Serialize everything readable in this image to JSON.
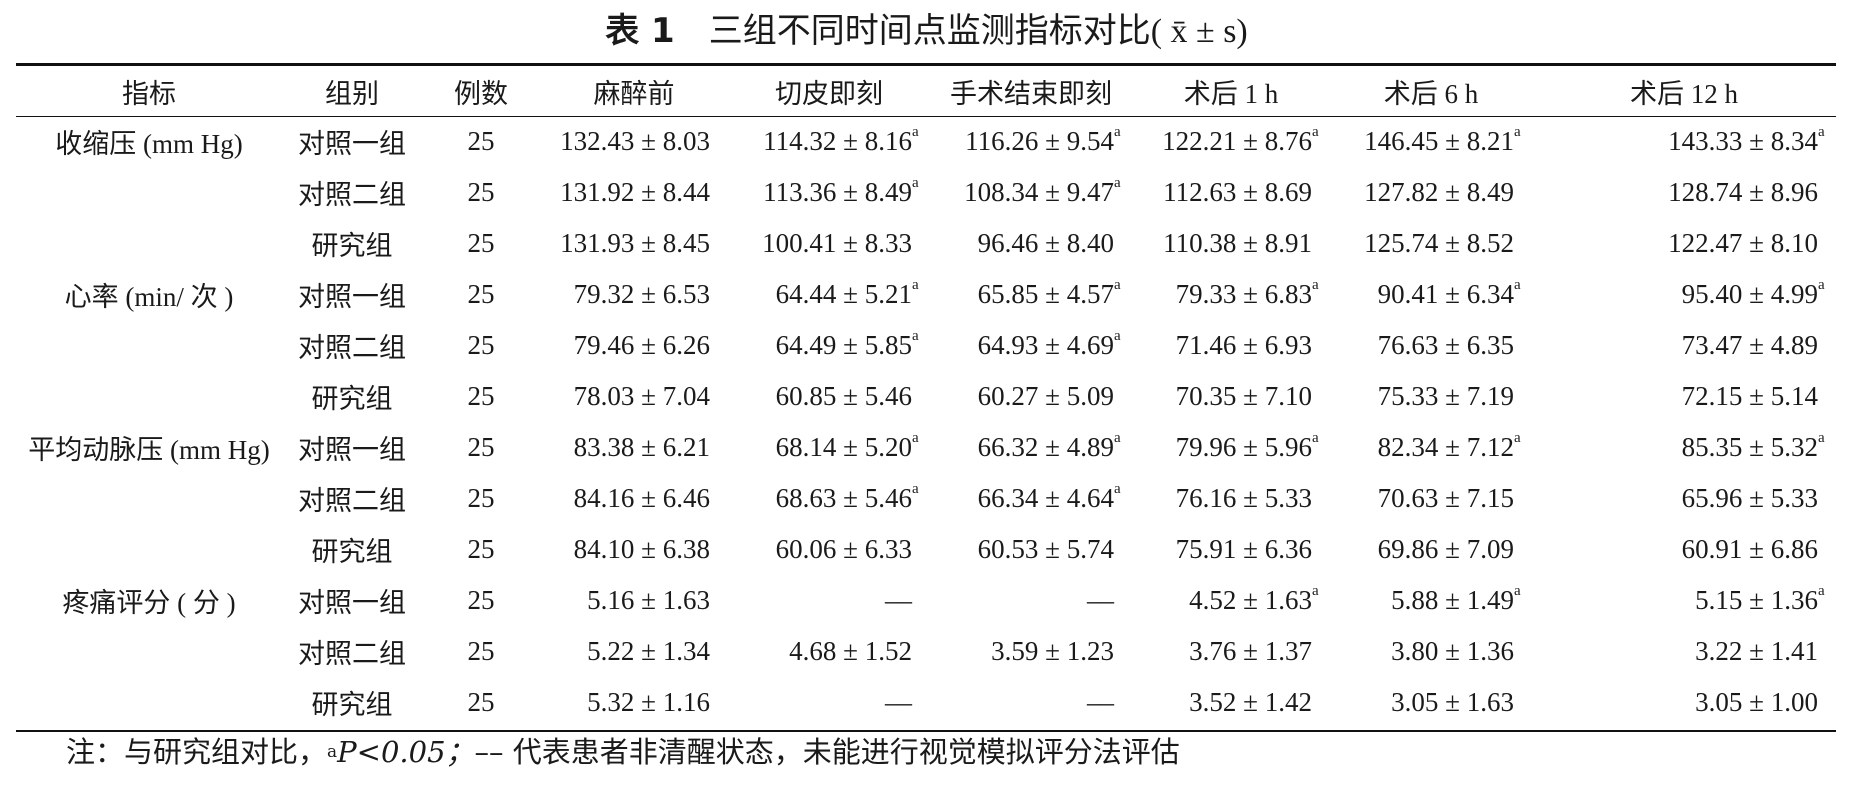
{
  "caption": {
    "label": "表 1",
    "title": "三组不同时间点监测指标对比",
    "stat": "( x̄ ± s)"
  },
  "table": {
    "headers": [
      "指标",
      "组别",
      "例数",
      "麻醉前",
      "切皮即刻",
      "手术结束即刻",
      "术后 1 h",
      "术后 6 h",
      "术后 12 h"
    ],
    "rows": [
      {
        "indicator": "收缩压 (mm Hg)",
        "group": "对照一组",
        "n": "25",
        "values": [
          "132.43 ± 8.03",
          "114.32 ± 8.16",
          "116.26 ± 9.54",
          "122.21 ± 8.76",
          "146.45 ± 8.21",
          "143.33 ± 8.34"
        ],
        "marks": [
          "",
          "a",
          "a",
          "a",
          "a",
          "a"
        ]
      },
      {
        "indicator": "",
        "group": "对照二组",
        "n": "25",
        "values": [
          "131.92 ± 8.44",
          "113.36 ± 8.49",
          "108.34 ± 9.47",
          "112.63 ± 8.69",
          "127.82 ± 8.49",
          "128.74 ± 8.96"
        ],
        "marks": [
          "",
          "a",
          "a",
          "",
          "",
          ""
        ]
      },
      {
        "indicator": "",
        "group": "研究组",
        "n": "25",
        "values": [
          "131.93 ± 8.45",
          "100.41 ± 8.33",
          "96.46 ± 8.40",
          "110.38 ± 8.91",
          "125.74 ± 8.52",
          "122.47 ± 8.10"
        ],
        "marks": [
          "",
          "",
          "",
          "",
          "",
          ""
        ]
      },
      {
        "indicator": "心率 (min/ 次 )",
        "group": "对照一组",
        "n": "25",
        "values": [
          "79.32 ± 6.53",
          "64.44 ± 5.21",
          "65.85 ± 4.57",
          "79.33 ± 6.83",
          "90.41 ± 6.34",
          "95.40 ± 4.99"
        ],
        "marks": [
          "",
          "a",
          "a",
          "a",
          "a",
          "a"
        ]
      },
      {
        "indicator": "",
        "group": "对照二组",
        "n": "25",
        "values": [
          "79.46 ± 6.26",
          "64.49 ± 5.85",
          "64.93 ± 4.69",
          "71.46 ± 6.93",
          "76.63 ± 6.35",
          "73.47 ± 4.89"
        ],
        "marks": [
          "",
          "a",
          "a",
          "",
          "",
          ""
        ]
      },
      {
        "indicator": "",
        "group": "研究组",
        "n": "25",
        "values": [
          "78.03 ± 7.04",
          "60.85 ± 5.46",
          "60.27 ± 5.09",
          "70.35 ± 7.10",
          "75.33 ± 7.19",
          "72.15 ± 5.14"
        ],
        "marks": [
          "",
          "",
          "",
          "",
          "",
          ""
        ]
      },
      {
        "indicator": "平均动脉压 (mm Hg)",
        "group": "对照一组",
        "n": "25",
        "values": [
          "83.38 ± 6.21",
          "68.14 ± 5.20",
          "66.32 ± 4.89",
          "79.96 ± 5.96",
          "82.34 ± 7.12",
          "85.35 ± 5.32"
        ],
        "marks": [
          "",
          "a",
          "a",
          "a",
          "a",
          "a"
        ]
      },
      {
        "indicator": "",
        "group": "对照二组",
        "n": "25",
        "values": [
          "84.16 ± 6.46",
          "68.63 ± 5.46",
          "66.34 ± 4.64",
          "76.16 ± 5.33",
          "70.63 ± 7.15",
          "65.96 ± 5.33"
        ],
        "marks": [
          "",
          "a",
          "a",
          "",
          "",
          ""
        ]
      },
      {
        "indicator": "",
        "group": "研究组",
        "n": "25",
        "values": [
          "84.10 ± 6.38",
          "60.06 ± 6.33",
          "60.53 ± 5.74",
          "75.91 ± 6.36",
          "69.86 ± 7.09",
          "60.91 ± 6.86"
        ],
        "marks": [
          "",
          "",
          "",
          "",
          "",
          ""
        ]
      },
      {
        "indicator": "疼痛评分 ( 分 )",
        "group": "对照一组",
        "n": "25",
        "values": [
          "5.16 ± 1.63",
          "––",
          "––",
          "4.52 ± 1.63",
          "5.88 ± 1.49",
          "5.15 ± 1.36"
        ],
        "marks": [
          "",
          "",
          "",
          "a",
          "a",
          "a"
        ]
      },
      {
        "indicator": "",
        "group": "对照二组",
        "n": "25",
        "values": [
          "5.22 ± 1.34",
          "4.68 ± 1.52",
          "3.59 ± 1.23",
          "3.76 ± 1.37",
          "3.80 ± 1.36",
          "3.22 ± 1.41"
        ],
        "marks": [
          "",
          "",
          "",
          "",
          "",
          ""
        ]
      },
      {
        "indicator": "",
        "group": "研究组",
        "n": "25",
        "values": [
          "5.32 ± 1.16",
          "––",
          "––",
          "3.52 ± 1.42",
          "3.05 ± 1.63",
          "3.05 ± 1.00"
        ],
        "marks": [
          "",
          "",
          "",
          "",
          "",
          ""
        ]
      }
    ]
  },
  "note": {
    "prefix": "注：与研究组对比，",
    "sup": "a",
    "p_text": "P<0.05；",
    "rest": "–– 代表患者非清醒状态，未能进行视觉模拟评分法评估"
  }
}
